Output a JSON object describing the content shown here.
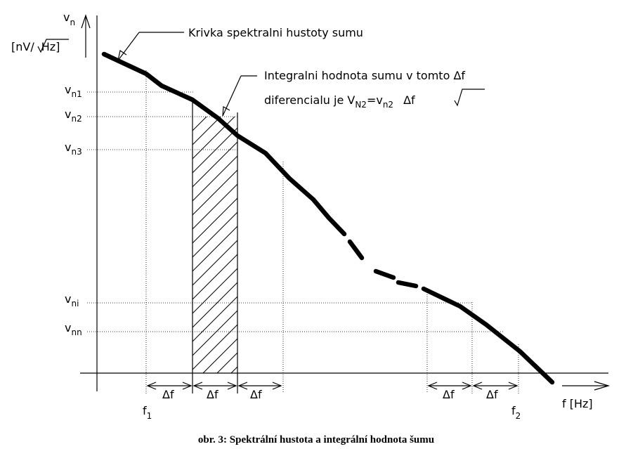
{
  "axes": {
    "y_symbol": "v",
    "y_symbol_sub": "n",
    "y_unit_prefix": "[nV/",
    "y_unit_root": "Hz",
    "y_unit_suffix": "]",
    "x_label": "f [Hz]"
  },
  "annotations": {
    "curve_label": "Krivka spektralni hustoty sumu",
    "integral_line1_prefix": "Integralni hodnota sumu v tomto ",
    "integral_line1_delta": "Δf",
    "integral_line2_prefix": "diferencialu je V",
    "integral_line2_sub": "N2",
    "integral_line2_eq": "=v",
    "integral_line2_sub2": "n2",
    "integral_line2_root": "Δf"
  },
  "y_ticks": [
    {
      "base": "v",
      "sub": "n1"
    },
    {
      "base": "v",
      "sub": "n2"
    },
    {
      "base": "v",
      "sub": "n3"
    },
    {
      "base": "v",
      "sub": "ni"
    },
    {
      "base": "v",
      "sub": "nn"
    }
  ],
  "x_markers": [
    {
      "base": "f",
      "sub": "1"
    },
    {
      "base": "f",
      "sub": "2"
    }
  ],
  "interval_labels": [
    "Δf",
    "Δf",
    "Δf",
    "Δf",
    "Δf"
  ],
  "caption": "obr. 3: Spektrální hustota a integrální hodnota šumu"
}
